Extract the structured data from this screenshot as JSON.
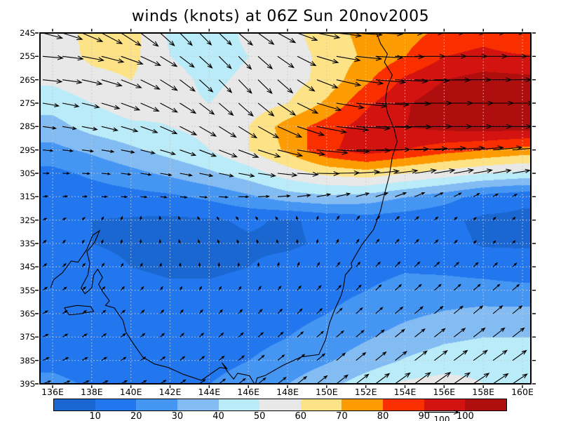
{
  "title": "winds (knots) at 06Z Sun 20nov2005",
  "axes": {
    "lat_tick_labels": [
      "24S",
      "25S",
      "26S",
      "27S",
      "28S",
      "29S",
      "30S",
      "31S",
      "32S",
      "33S",
      "34S",
      "35S",
      "36S",
      "37S",
      "38S",
      "39S"
    ],
    "lon_tick_labels": [
      "136E",
      "138E",
      "140E",
      "142E",
      "144E",
      "146E",
      "148E",
      "150E",
      "152E",
      "154E",
      "156E",
      "158E",
      "160E"
    ]
  },
  "colorbar": {
    "tick_labels": [
      "10",
      "20",
      "30",
      "40",
      "50",
      "60",
      "70",
      "80",
      "90",
      "100"
    ],
    "reference_label": "100"
  },
  "chart_data": {
    "type": "heatmap",
    "subtype": "filled-contour wind speed map with vector overlay",
    "title": "winds (knots) at 06Z Sun 20nov2005",
    "units": "knots",
    "lat_range_south": [
      24,
      39
    ],
    "lon_range_east": [
      136,
      160
    ],
    "legend_position": "bottom",
    "grid_lines": "dotted 2deg lon x 1deg lat",
    "levels": [
      10,
      20,
      30,
      40,
      50,
      60,
      70,
      80,
      90,
      100
    ],
    "colors": [
      "#1b67d2",
      "#2277ee",
      "#4595f3",
      "#83bbf3",
      "#b9ecf8",
      "#e8e8e8",
      "#fde385",
      "#fc9c02",
      "#fa2f00",
      "#d21310",
      "#ae0e0d"
    ],
    "vector_overlay": true,
    "vector_reference_knots": 100,
    "grid": {
      "lons": [
        136,
        138,
        140,
        142,
        144,
        146,
        148,
        150,
        152,
        154,
        156,
        158,
        160
      ],
      "lats": [
        24,
        25,
        26,
        27,
        28,
        29,
        30,
        31,
        32,
        33,
        34,
        35,
        36,
        37,
        38,
        39
      ],
      "speed_knots": [
        [
          55,
          63,
          64,
          48,
          45,
          52,
          56,
          66,
          73,
          76,
          83,
          86,
          80
        ],
        [
          55,
          62,
          63,
          50,
          46,
          50,
          55,
          63,
          72,
          80,
          90,
          93,
          91
        ],
        [
          52,
          57,
          60,
          53,
          48,
          52,
          55,
          64,
          78,
          92,
          100,
          104,
          103
        ],
        [
          44,
          50,
          55,
          52,
          50,
          54,
          60,
          72,
          88,
          99,
          106,
          110,
          108
        ],
        [
          36,
          44,
          48,
          50,
          53,
          60,
          75,
          85,
          95,
          100,
          103,
          105,
          104
        ],
        [
          27,
          32,
          38,
          44,
          50,
          60,
          72,
          88,
          95,
          90,
          84,
          80,
          76
        ],
        [
          17,
          22,
          27,
          32,
          38,
          45,
          55,
          62,
          65,
          60,
          55,
          50,
          47
        ],
        [
          13,
          14,
          16,
          18,
          22,
          28,
          35,
          38,
          36,
          30,
          24,
          16,
          12
        ],
        [
          11,
          10,
          9,
          8,
          9,
          11,
          9,
          12,
          15,
          14,
          12,
          8,
          8
        ],
        [
          12,
          10,
          9,
          8,
          8,
          9,
          9,
          11,
          14,
          15,
          13,
          9,
          9
        ],
        [
          13,
          12,
          10,
          9,
          9,
          10,
          12,
          14,
          17,
          19,
          18,
          16,
          14
        ],
        [
          14,
          13,
          12,
          11,
          11,
          12,
          14,
          17,
          20,
          23,
          24,
          24,
          23
        ],
        [
          15,
          14,
          13,
          13,
          13,
          15,
          17,
          20,
          24,
          28,
          31,
          33,
          33
        ],
        [
          16,
          15,
          14,
          14,
          15,
          17,
          20,
          24,
          29,
          34,
          38,
          40,
          40
        ],
        [
          18,
          16,
          15,
          16,
          17,
          20,
          24,
          29,
          35,
          41,
          45,
          47,
          46
        ],
        [
          22,
          19,
          17,
          18,
          20,
          24,
          30,
          37,
          45,
          52,
          54,
          50,
          47
        ]
      ],
      "direction_deg_from_east_ccw": [
        [
          -15,
          -25,
          -35,
          -45,
          -45,
          -40,
          -25,
          -8,
          -3,
          0,
          0,
          0,
          2
        ],
        [
          -5,
          -12,
          -22,
          -35,
          -45,
          -45,
          -32,
          -12,
          -4,
          0,
          0,
          0,
          0
        ],
        [
          -6,
          -14,
          -24,
          -35,
          -45,
          -46,
          -40,
          -16,
          -6,
          -2,
          0,
          0,
          0
        ],
        [
          -10,
          -15,
          -22,
          -30,
          -40,
          -42,
          -32,
          -12,
          -4,
          0,
          0,
          0,
          0
        ],
        [
          -8,
          -12,
          -18,
          -25,
          -32,
          -32,
          -22,
          -8,
          -2,
          0,
          0,
          0,
          0
        ],
        [
          -5,
          -8,
          -12,
          -18,
          -22,
          -20,
          -12,
          -4,
          0,
          2,
          4,
          5,
          5
        ],
        [
          0,
          -4,
          -8,
          -10,
          -12,
          -10,
          -5,
          0,
          5,
          8,
          10,
          10,
          10
        ],
        [
          6,
          2,
          -4,
          -6,
          -5,
          0,
          5,
          12,
          16,
          22,
          26,
          30,
          32
        ],
        [
          25,
          50,
          80,
          105,
          120,
          130,
          120,
          60,
          45,
          40,
          42,
          46,
          50
        ],
        [
          45,
          60,
          85,
          100,
          110,
          115,
          100,
          70,
          52,
          46,
          44,
          46,
          48
        ],
        [
          40,
          50,
          62,
          80,
          90,
          88,
          70,
          56,
          48,
          45,
          43,
          43,
          45
        ],
        [
          35,
          44,
          50,
          58,
          60,
          55,
          50,
          48,
          45,
          42,
          41,
          41,
          42
        ],
        [
          30,
          38,
          44,
          48,
          50,
          48,
          45,
          44,
          42,
          41,
          40,
          40,
          40
        ],
        [
          28,
          34,
          40,
          42,
          43,
          42,
          42,
          41,
          40,
          39,
          38,
          38,
          38
        ],
        [
          25,
          30,
          35,
          38,
          40,
          40,
          40,
          40,
          39,
          38,
          37,
          36,
          36
        ],
        [
          20,
          25,
          30,
          34,
          37,
          38,
          38,
          38,
          37,
          36,
          35,
          34,
          34
        ]
      ]
    }
  },
  "map": {
    "coastlines": [
      [
        [
          152.55,
          24.0
        ],
        [
          152.75,
          24.45
        ],
        [
          153.1,
          24.9
        ],
        [
          152.95,
          25.25
        ],
        [
          153.35,
          25.8
        ],
        [
          153.1,
          26.3
        ],
        [
          153.0,
          26.9
        ],
        [
          153.1,
          27.4
        ],
        [
          153.45,
          28.1
        ],
        [
          153.6,
          28.65
        ],
        [
          153.35,
          29.3
        ],
        [
          153.2,
          30.1
        ],
        [
          152.95,
          30.9
        ],
        [
          152.75,
          31.6
        ],
        [
          152.4,
          32.4
        ],
        [
          151.8,
          33.05
        ],
        [
          151.45,
          33.55
        ],
        [
          151.25,
          33.85
        ],
        [
          151.3,
          34.0
        ],
        [
          150.95,
          34.35
        ],
        [
          150.85,
          34.9
        ],
        [
          150.75,
          35.2
        ],
        [
          150.4,
          35.85
        ],
        [
          150.15,
          36.4
        ],
        [
          149.95,
          37.1
        ],
        [
          149.6,
          37.75
        ],
        [
          148.7,
          37.85
        ],
        [
          147.8,
          38.2
        ],
        [
          146.85,
          38.65
        ],
        [
          146.45,
          38.75
        ],
        [
          146.35,
          39.05
        ],
        [
          146.05,
          38.65
        ],
        [
          145.45,
          38.55
        ],
        [
          145.25,
          38.8
        ],
        [
          144.95,
          38.5
        ],
        [
          144.65,
          38.1
        ],
        [
          144.9,
          38.35
        ],
        [
          144.55,
          38.3
        ],
        [
          143.6,
          38.85
        ],
        [
          142.7,
          38.6
        ],
        [
          141.9,
          38.3
        ],
        [
          141.2,
          38.15
        ],
        [
          140.6,
          37.85
        ],
        [
          140.1,
          37.25
        ],
        [
          139.75,
          36.8
        ],
        [
          139.6,
          36.3
        ],
        [
          139.15,
          35.75
        ],
        [
          138.7,
          35.65
        ],
        [
          138.9,
          35.45
        ],
        [
          138.55,
          35.05
        ],
        [
          138.35,
          34.75
        ],
        [
          138.55,
          34.45
        ],
        [
          138.3,
          34.1
        ],
        [
          138.1,
          34.35
        ],
        [
          138.0,
          34.9
        ],
        [
          137.65,
          35.15
        ],
        [
          137.45,
          34.9
        ],
        [
          137.8,
          34.35
        ],
        [
          137.9,
          33.85
        ],
        [
          137.75,
          33.35
        ],
        [
          138.15,
          32.95
        ],
        [
          138.4,
          32.45
        ],
        [
          138.05,
          32.65
        ],
        [
          137.75,
          33.25
        ],
        [
          137.3,
          33.8
        ],
        [
          136.95,
          33.75
        ],
        [
          136.5,
          34.25
        ],
        [
          136.05,
          34.55
        ],
        [
          135.9,
          34.9
        ]
      ],
      [
        [
          136.6,
          35.75
        ],
        [
          137.25,
          35.65
        ],
        [
          137.95,
          35.7
        ],
        [
          138.1,
          35.9
        ],
        [
          137.45,
          36.0
        ],
        [
          136.85,
          36.05
        ],
        [
          136.6,
          35.75
        ]
      ]
    ]
  }
}
